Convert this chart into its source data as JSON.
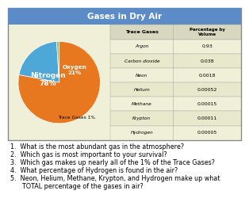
{
  "title": "Gases in Dry Air",
  "title_bg": "#5b8cc8",
  "title_color": "white",
  "pie_slices": [
    78,
    21,
    1
  ],
  "pie_labels": [
    "Nitrogen\n78%",
    "Oxygen\n21%",
    "Trace Gases 1%"
  ],
  "pie_colors": [
    "#e87820",
    "#4da8d8",
    "#8fbb6e"
  ],
  "table_header": [
    "Trace Gases",
    "Percentage by\nVolume"
  ],
  "table_rows": [
    [
      "Argon",
      "0.93"
    ],
    [
      "Carbon dioxide",
      "0.038"
    ],
    [
      "Neon",
      "0.0018"
    ],
    [
      "Helium",
      "0.00052"
    ],
    [
      "Methane",
      "0.00015"
    ],
    [
      "Krypton",
      "0.00011"
    ],
    [
      "Hydrogen",
      "0.00005"
    ]
  ],
  "table_header_bg": "#d8d8c0",
  "table_row_bg1": "#f0f0d8",
  "table_row_bg2": "#e8e8cc",
  "box_border": "#888888",
  "questions": [
    "1.  What is the most abundant gas in the atmosphere?",
    "2.  Which gas is most important to your survival?",
    "3.  Which gas makes up nearly all of the 1% of the Trace Gases?",
    "4.  What percentage of Hydrogen is found in the air?",
    "5.  Neon, Helium, Methane, Krypton, and Hydrogen make up what\n      TOTAL percentage of the gases in air?"
  ],
  "outer_bg": "#ffffff"
}
